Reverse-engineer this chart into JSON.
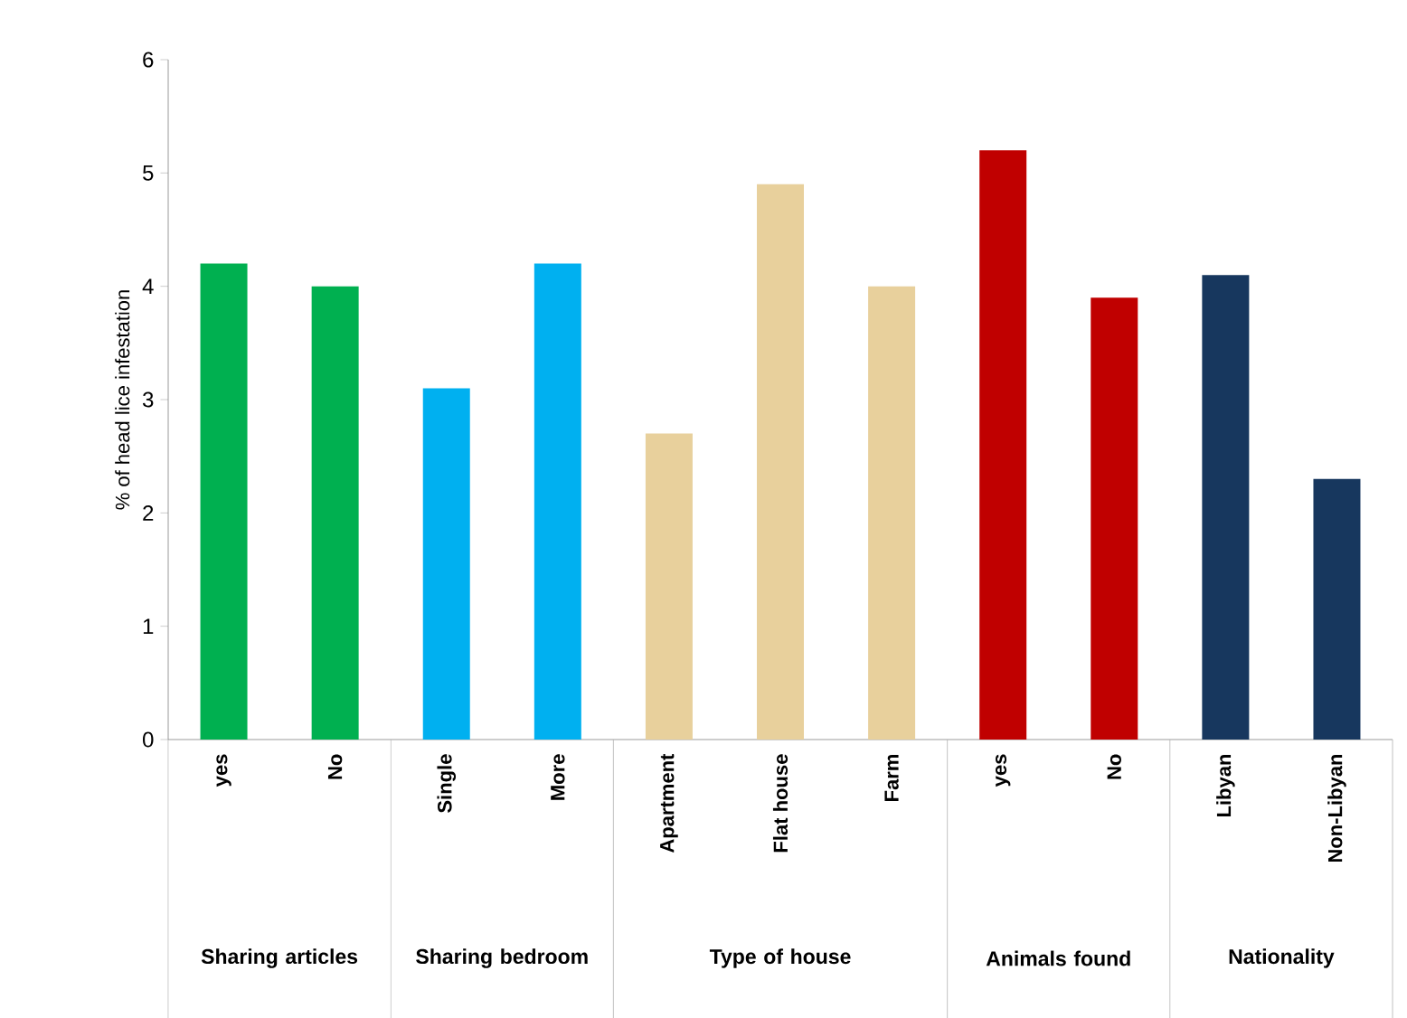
{
  "chart_data": {
    "type": "bar",
    "ylabel": "% of head lice infestation",
    "categories": [
      "yes",
      "No",
      "Single",
      "More",
      "Apartment",
      "Flat house",
      "Farm",
      "yes",
      "No",
      "Libyan",
      "Non-Libyan"
    ],
    "values": [
      4.2,
      4.0,
      3.1,
      4.2,
      2.7,
      4.9,
      4.0,
      5.2,
      3.9,
      4.1,
      2.3
    ],
    "colors": [
      "#00b050",
      "#00b050",
      "#00b0f0",
      "#00b0f0",
      "#e8d09c",
      "#e8d09c",
      "#e8d09c",
      "#c00000",
      "#c00000",
      "#17375e",
      "#17375e"
    ],
    "ylim": [
      0,
      6
    ],
    "yticks": [
      0,
      1,
      2,
      3,
      4,
      5,
      6
    ],
    "annotations": [
      "Sharing articles",
      "Sharing bedroom",
      "Type of house",
      "Animals found",
      "Nationality"
    ]
  }
}
